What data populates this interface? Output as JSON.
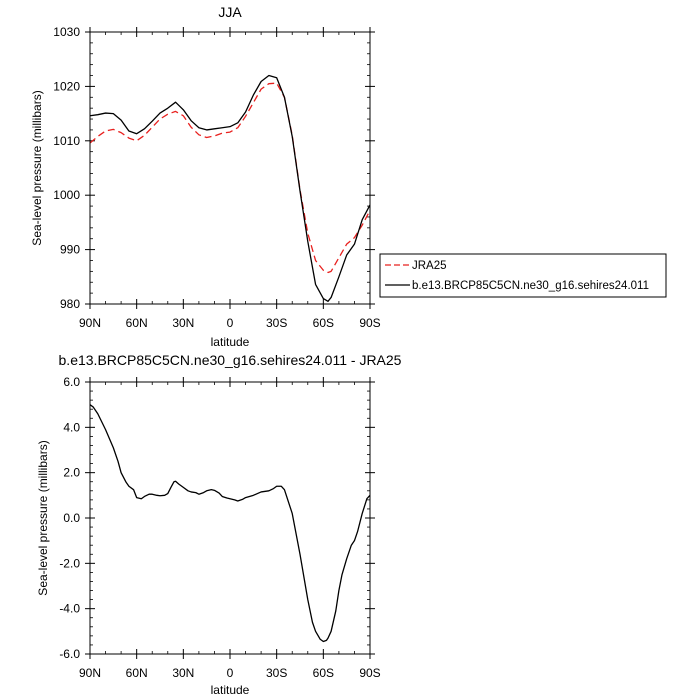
{
  "chart_data": [
    {
      "type": "line",
      "title": "JJA",
      "xlabel": "latitude",
      "ylabel": "Sea-level pressure (millibars)",
      "xlim": [
        -90,
        90
      ],
      "ylim": [
        980,
        1030
      ],
      "x_tick_values": [
        -90,
        -60,
        -30,
        0,
        30,
        60,
        90
      ],
      "x_tick_labels": [
        "90N",
        "60N",
        "30N",
        "0",
        "30S",
        "60S",
        "90S"
      ],
      "y_tick_values": [
        980,
        990,
        1000,
        1010,
        1020,
        1030
      ],
      "y_tick_labels": [
        "980",
        "990",
        "1000",
        "1010",
        "1020",
        "1030"
      ],
      "legend_position": "right",
      "series": [
        {
          "name": "JRA25",
          "color": "#e8201e",
          "dash": "dashed",
          "x": [
            -90,
            -85,
            -80,
            -75,
            -70,
            -65,
            -60,
            -55,
            -50,
            -45,
            -40,
            -35,
            -30,
            -25,
            -20,
            -15,
            -10,
            -5,
            0,
            5,
            10,
            15,
            20,
            25,
            30,
            35,
            40,
            45,
            50,
            55,
            60,
            63,
            65,
            70,
            75,
            80,
            85,
            90
          ],
          "y": [
            1009.6,
            1010.8,
            1011.8,
            1012.1,
            1011.5,
            1010.5,
            1010.0,
            1011.0,
            1012.5,
            1014.0,
            1014.9,
            1015.4,
            1014.6,
            1012.5,
            1011.1,
            1010.6,
            1010.9,
            1011.4,
            1011.6,
            1012.4,
            1014.5,
            1017.0,
            1019.5,
            1020.5,
            1020.6,
            1018.0,
            1011.0,
            1001.0,
            993.0,
            988.0,
            986.2,
            985.8,
            986.0,
            988.5,
            991.0,
            992.2,
            994.5,
            997.2
          ]
        },
        {
          "name": "b.e13.BRCP85C5CN.ne30_g16.sehires24.011",
          "color": "#000000",
          "dash": "solid",
          "x": [
            -90,
            -85,
            -80,
            -75,
            -70,
            -65,
            -60,
            -55,
            -50,
            -45,
            -40,
            -35,
            -30,
            -25,
            -20,
            -15,
            -10,
            -5,
            0,
            5,
            10,
            15,
            20,
            25,
            30,
            35,
            40,
            45,
            50,
            55,
            60,
            63,
            65,
            70,
            75,
            80,
            85,
            90
          ],
          "y": [
            1014.6,
            1014.8,
            1015.1,
            1015.0,
            1013.8,
            1011.8,
            1011.3,
            1012.2,
            1013.6,
            1015.1,
            1016.0,
            1017.1,
            1015.7,
            1013.7,
            1012.4,
            1012.0,
            1012.2,
            1012.4,
            1012.6,
            1013.3,
            1015.3,
            1018.4,
            1020.9,
            1022.0,
            1021.6,
            1018.0,
            1010.8,
            1000.8,
            991.5,
            983.6,
            981.0,
            980.5,
            981.2,
            985.0,
            989.0,
            991.0,
            995.5,
            998.2
          ]
        }
      ]
    },
    {
      "type": "line",
      "title": "b.e13.BRCP85C5CN.ne30_g16.sehires24.011 - JRA25",
      "xlabel": "latitude",
      "ylabel": "Sea-level pressure (millibars)",
      "xlim": [
        -90,
        90
      ],
      "ylim": [
        -6,
        6
      ],
      "x_tick_values": [
        -90,
        -60,
        -30,
        0,
        30,
        60,
        90
      ],
      "x_tick_labels": [
        "90N",
        "60N",
        "30N",
        "0",
        "30S",
        "60S",
        "90S"
      ],
      "y_tick_values": [
        -6,
        -4,
        -2,
        0,
        2,
        4,
        6
      ],
      "y_tick_labels": [
        "-6.0",
        "-4.0",
        "-2.0",
        "0.0",
        "2.0",
        "4.0",
        "6.0"
      ],
      "series": [
        {
          "color": "#000000",
          "dash": "solid",
          "x": [
            -90,
            -88,
            -85,
            -80,
            -75,
            -72,
            -70,
            -67,
            -65,
            -62,
            -60,
            -57,
            -55,
            -52,
            -50,
            -47,
            -45,
            -42,
            -40,
            -38,
            -36,
            -35,
            -33,
            -30,
            -27,
            -25,
            -22,
            -20,
            -17,
            -15,
            -12,
            -10,
            -7,
            -5,
            -2,
            0,
            3,
            5,
            8,
            10,
            15,
            20,
            25,
            28,
            30,
            33,
            35,
            40,
            45,
            50,
            53,
            55,
            58,
            60,
            62,
            63,
            65,
            68,
            70,
            72,
            75,
            78,
            80,
            82,
            85,
            88,
            90
          ],
          "y": [
            5.0,
            4.9,
            4.6,
            3.9,
            3.1,
            2.5,
            2.0,
            1.6,
            1.4,
            1.25,
            0.9,
            0.85,
            0.95,
            1.05,
            1.05,
            1.0,
            0.98,
            1.0,
            1.08,
            1.35,
            1.6,
            1.62,
            1.5,
            1.35,
            1.2,
            1.15,
            1.12,
            1.05,
            1.12,
            1.2,
            1.25,
            1.22,
            1.1,
            0.95,
            0.88,
            0.85,
            0.8,
            0.75,
            0.82,
            0.9,
            1.0,
            1.15,
            1.2,
            1.3,
            1.4,
            1.4,
            1.25,
            0.2,
            -1.6,
            -3.6,
            -4.6,
            -5.0,
            -5.35,
            -5.45,
            -5.4,
            -5.3,
            -5.0,
            -4.1,
            -3.2,
            -2.5,
            -1.8,
            -1.2,
            -1.0,
            -0.6,
            0.2,
            0.85,
            1.0
          ]
        }
      ]
    }
  ]
}
